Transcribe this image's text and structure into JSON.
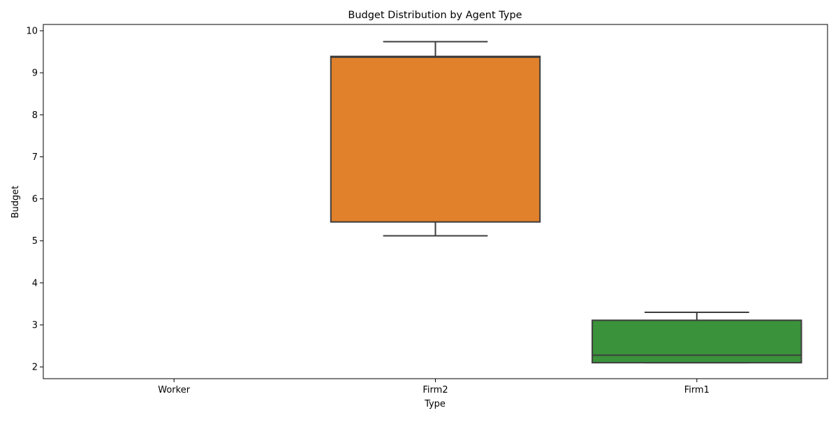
{
  "chart_data": {
    "type": "box",
    "title": "Budget Distribution by Agent Type",
    "xlabel": "Type",
    "ylabel": "Budget",
    "categories": [
      "Worker",
      "Firm2",
      "Firm1"
    ],
    "ylim": [
      1.72,
      10.15
    ],
    "yticks": [
      2,
      3,
      4,
      5,
      6,
      7,
      8,
      9,
      10
    ],
    "boxes": [
      {
        "category": "Worker",
        "color": null,
        "whisker_low": null,
        "q1": null,
        "median": null,
        "q3": null,
        "whisker_high": null
      },
      {
        "category": "Firm2",
        "color": "#e1812c",
        "whisker_low": 5.12,
        "q1": 5.45,
        "median": 9.37,
        "q3": 9.39,
        "whisker_high": 9.74
      },
      {
        "category": "Firm1",
        "color": "#3a923a",
        "whisker_low": 2.1,
        "q1": 2.1,
        "median": 2.28,
        "q3": 3.11,
        "whisker_high": 3.3
      }
    ],
    "line_color": "#3d3d3d",
    "grid": false,
    "legend": "none"
  }
}
